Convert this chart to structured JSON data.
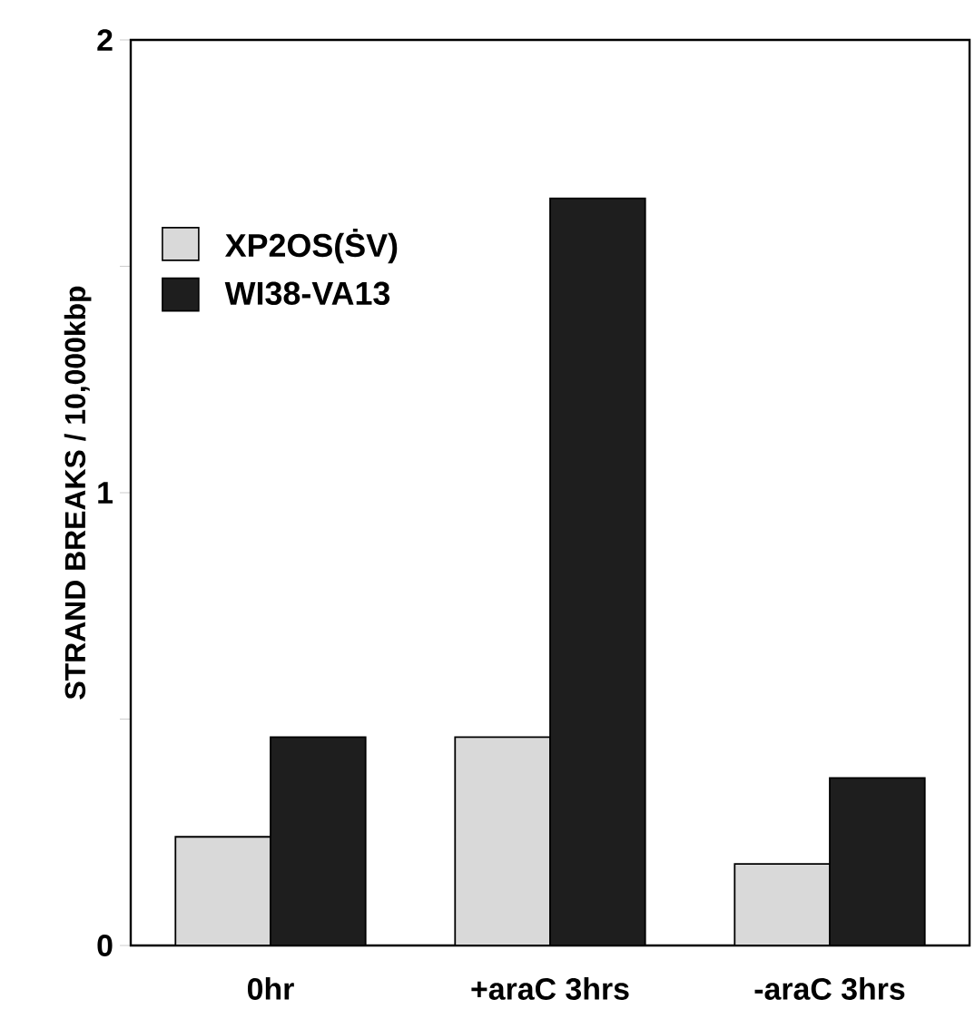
{
  "chart_data": {
    "type": "bar",
    "ylabel": "STRAND BREAKS / 10,000kbp",
    "categories": [
      "0hr",
      "+araC 3hrs",
      "-araC 3hrs"
    ],
    "series": [
      {
        "name": "XP2OS(ṠV)",
        "color": "#d9d9d9",
        "values": [
          0.24,
          0.46,
          0.18
        ]
      },
      {
        "name": "WI38-VA13",
        "color": "#1e1e1e",
        "values": [
          0.46,
          1.65,
          0.37
        ]
      }
    ],
    "ylim": [
      0,
      2
    ],
    "yticks": [
      0,
      {
        "value": 0.5,
        "label": null
      },
      1,
      {
        "value": 1.5,
        "label": null
      },
      2
    ],
    "legend": "top left",
    "grid": false
  }
}
